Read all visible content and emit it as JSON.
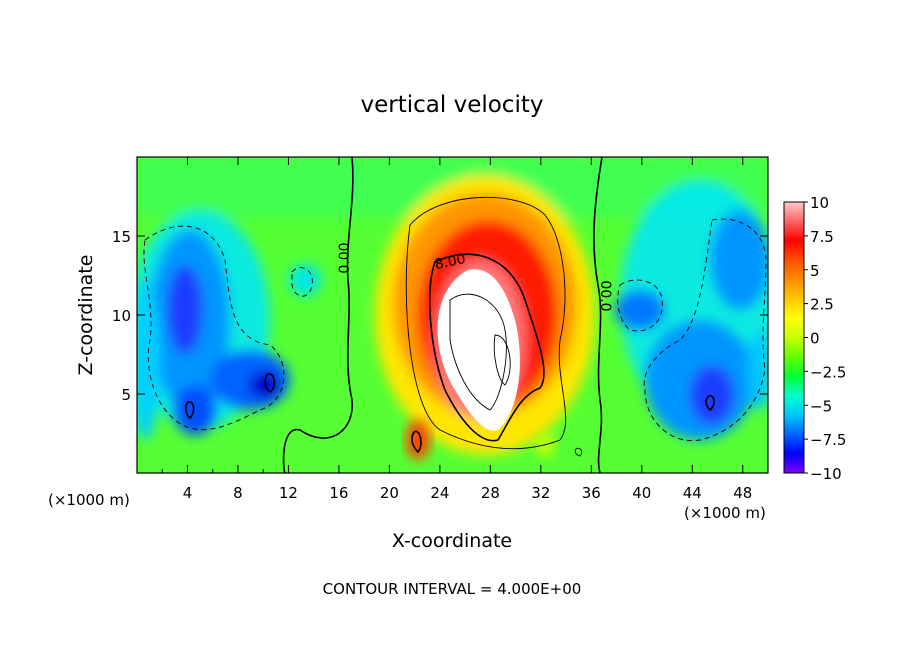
{
  "chart_data": {
    "type": "heatmap",
    "title": "vertical velocity",
    "xlabel": "X-coordinate",
    "ylabel": "Z-coordinate",
    "x_unit_left": "(×1000 m)",
    "x_unit_right": "(×1000 m)",
    "x_ticks": [
      4,
      8,
      12,
      16,
      20,
      24,
      28,
      32,
      36,
      40,
      44,
      48
    ],
    "y_ticks": [
      5,
      10,
      15
    ],
    "xlim": [
      0,
      50
    ],
    "ylim": [
      0,
      20
    ],
    "footer": "CONTOUR INTERVAL = 4.000E+00",
    "contour_labels": [
      {
        "text": "0.00",
        "x": 16.5,
        "z": 13.0
      },
      {
        "text": "8.00",
        "x": 26.0,
        "z": 13.5
      },
      {
        "text": "00.0",
        "x": 36.5,
        "z": 11.0
      }
    ],
    "colorbar": {
      "labels": [
        "10",
        "7.5",
        "5",
        "2.5",
        "0",
        "-2.5",
        "-5",
        "-7.5",
        "-10"
      ],
      "range": [
        -10,
        10
      ],
      "colors": [
        "#7f00ff",
        "#0000ff",
        "#0064ff",
        "#00c8ff",
        "#00ffc8",
        "#00ff32",
        "#64ff00",
        "#c8ff00",
        "#ffff00",
        "#ffc800",
        "#ff8c00",
        "#ff5000",
        "#ff0000",
        "#ff6464",
        "#ffc8c8"
      ]
    },
    "features": [
      {
        "type": "updraft",
        "x": 26.5,
        "z": 8.5,
        "peak": 16
      },
      {
        "type": "downdraft",
        "x": 4,
        "z": 9,
        "peak": -8
      },
      {
        "type": "downdraft",
        "x": 10.5,
        "z": 5.5,
        "peak": -9
      },
      {
        "type": "downdraft",
        "x": 44.5,
        "z": 6,
        "peak": -8
      },
      {
        "type": "downdraft",
        "x": 40,
        "z": 10,
        "peak": -6
      }
    ]
  }
}
